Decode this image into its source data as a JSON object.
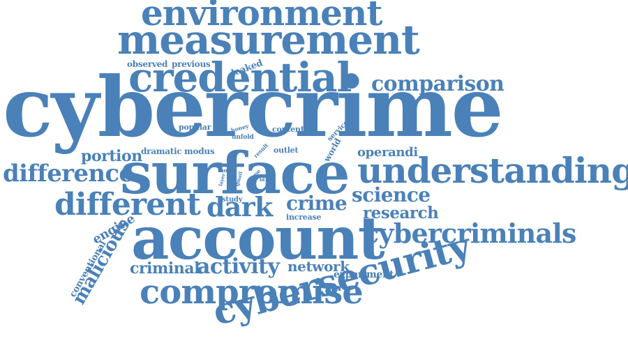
{
  "color": "#4a81b8",
  "words": [
    {
      "text": "cybercrime",
      "rotation": 0
    },
    {
      "text": "account",
      "rotation": 0
    },
    {
      "text": "surface",
      "rotation": 0
    },
    {
      "text": "cybersecurity",
      "rotation": -15
    },
    {
      "text": "credential",
      "rotation": 0
    },
    {
      "text": "measurement",
      "rotation": 0
    },
    {
      "text": "environment",
      "rotation": 0
    },
    {
      "text": "understanding",
      "rotation": 0
    },
    {
      "text": "compromise",
      "rotation": 0
    },
    {
      "text": "cybercriminals",
      "rotation": 0
    },
    {
      "text": "different",
      "rotation": 0
    },
    {
      "text": "difference",
      "rotation": 0
    },
    {
      "text": "comparison",
      "rotation": 0
    },
    {
      "text": "dark",
      "rotation": 0
    },
    {
      "text": "activity",
      "rotation": 0
    },
    {
      "text": "crime",
      "rotation": 0
    },
    {
      "text": "science",
      "rotation": 0
    },
    {
      "text": "malicious",
      "rotation": -60
    },
    {
      "text": "research",
      "rotation": 0
    },
    {
      "text": "portion",
      "rotation": 0
    },
    {
      "text": "criminal",
      "rotation": 0
    },
    {
      "text": "network",
      "rotation": 0
    },
    {
      "text": "operandi",
      "rotation": 0
    },
    {
      "text": "engine",
      "rotation": -30
    },
    {
      "text": "conventional",
      "rotation": -60
    },
    {
      "text": "experiment",
      "rotation": 0
    },
    {
      "text": "dramatic",
      "rotation": 0
    },
    {
      "text": "modus",
      "rotation": 0
    },
    {
      "text": "observed",
      "rotation": 0
    },
    {
      "text": "previous",
      "rotation": 0
    },
    {
      "text": "leaked",
      "rotation": -20
    },
    {
      "text": "popular",
      "rotation": 0
    },
    {
      "text": "content",
      "rotation": 0
    },
    {
      "text": "world",
      "rotation": -60
    },
    {
      "text": "service",
      "rotation": -45
    },
    {
      "text": "outlet",
      "rotation": 0
    },
    {
      "text": "increase",
      "rotation": 0
    },
    {
      "text": "study",
      "rotation": 0
    },
    {
      "text": "honey",
      "rotation": -15
    },
    {
      "text": "unfold",
      "rotation": 0
    },
    {
      "text": "result",
      "rotation": -45
    },
    {
      "text": "type",
      "rotation": -45
    },
    {
      "text": "more",
      "rotation": 0
    },
    {
      "text": "layer",
      "rotation": -75
    },
    {
      "text": "gmail",
      "rotation": -75
    },
    {
      "text": "id",
      "rotation": 0
    }
  ]
}
